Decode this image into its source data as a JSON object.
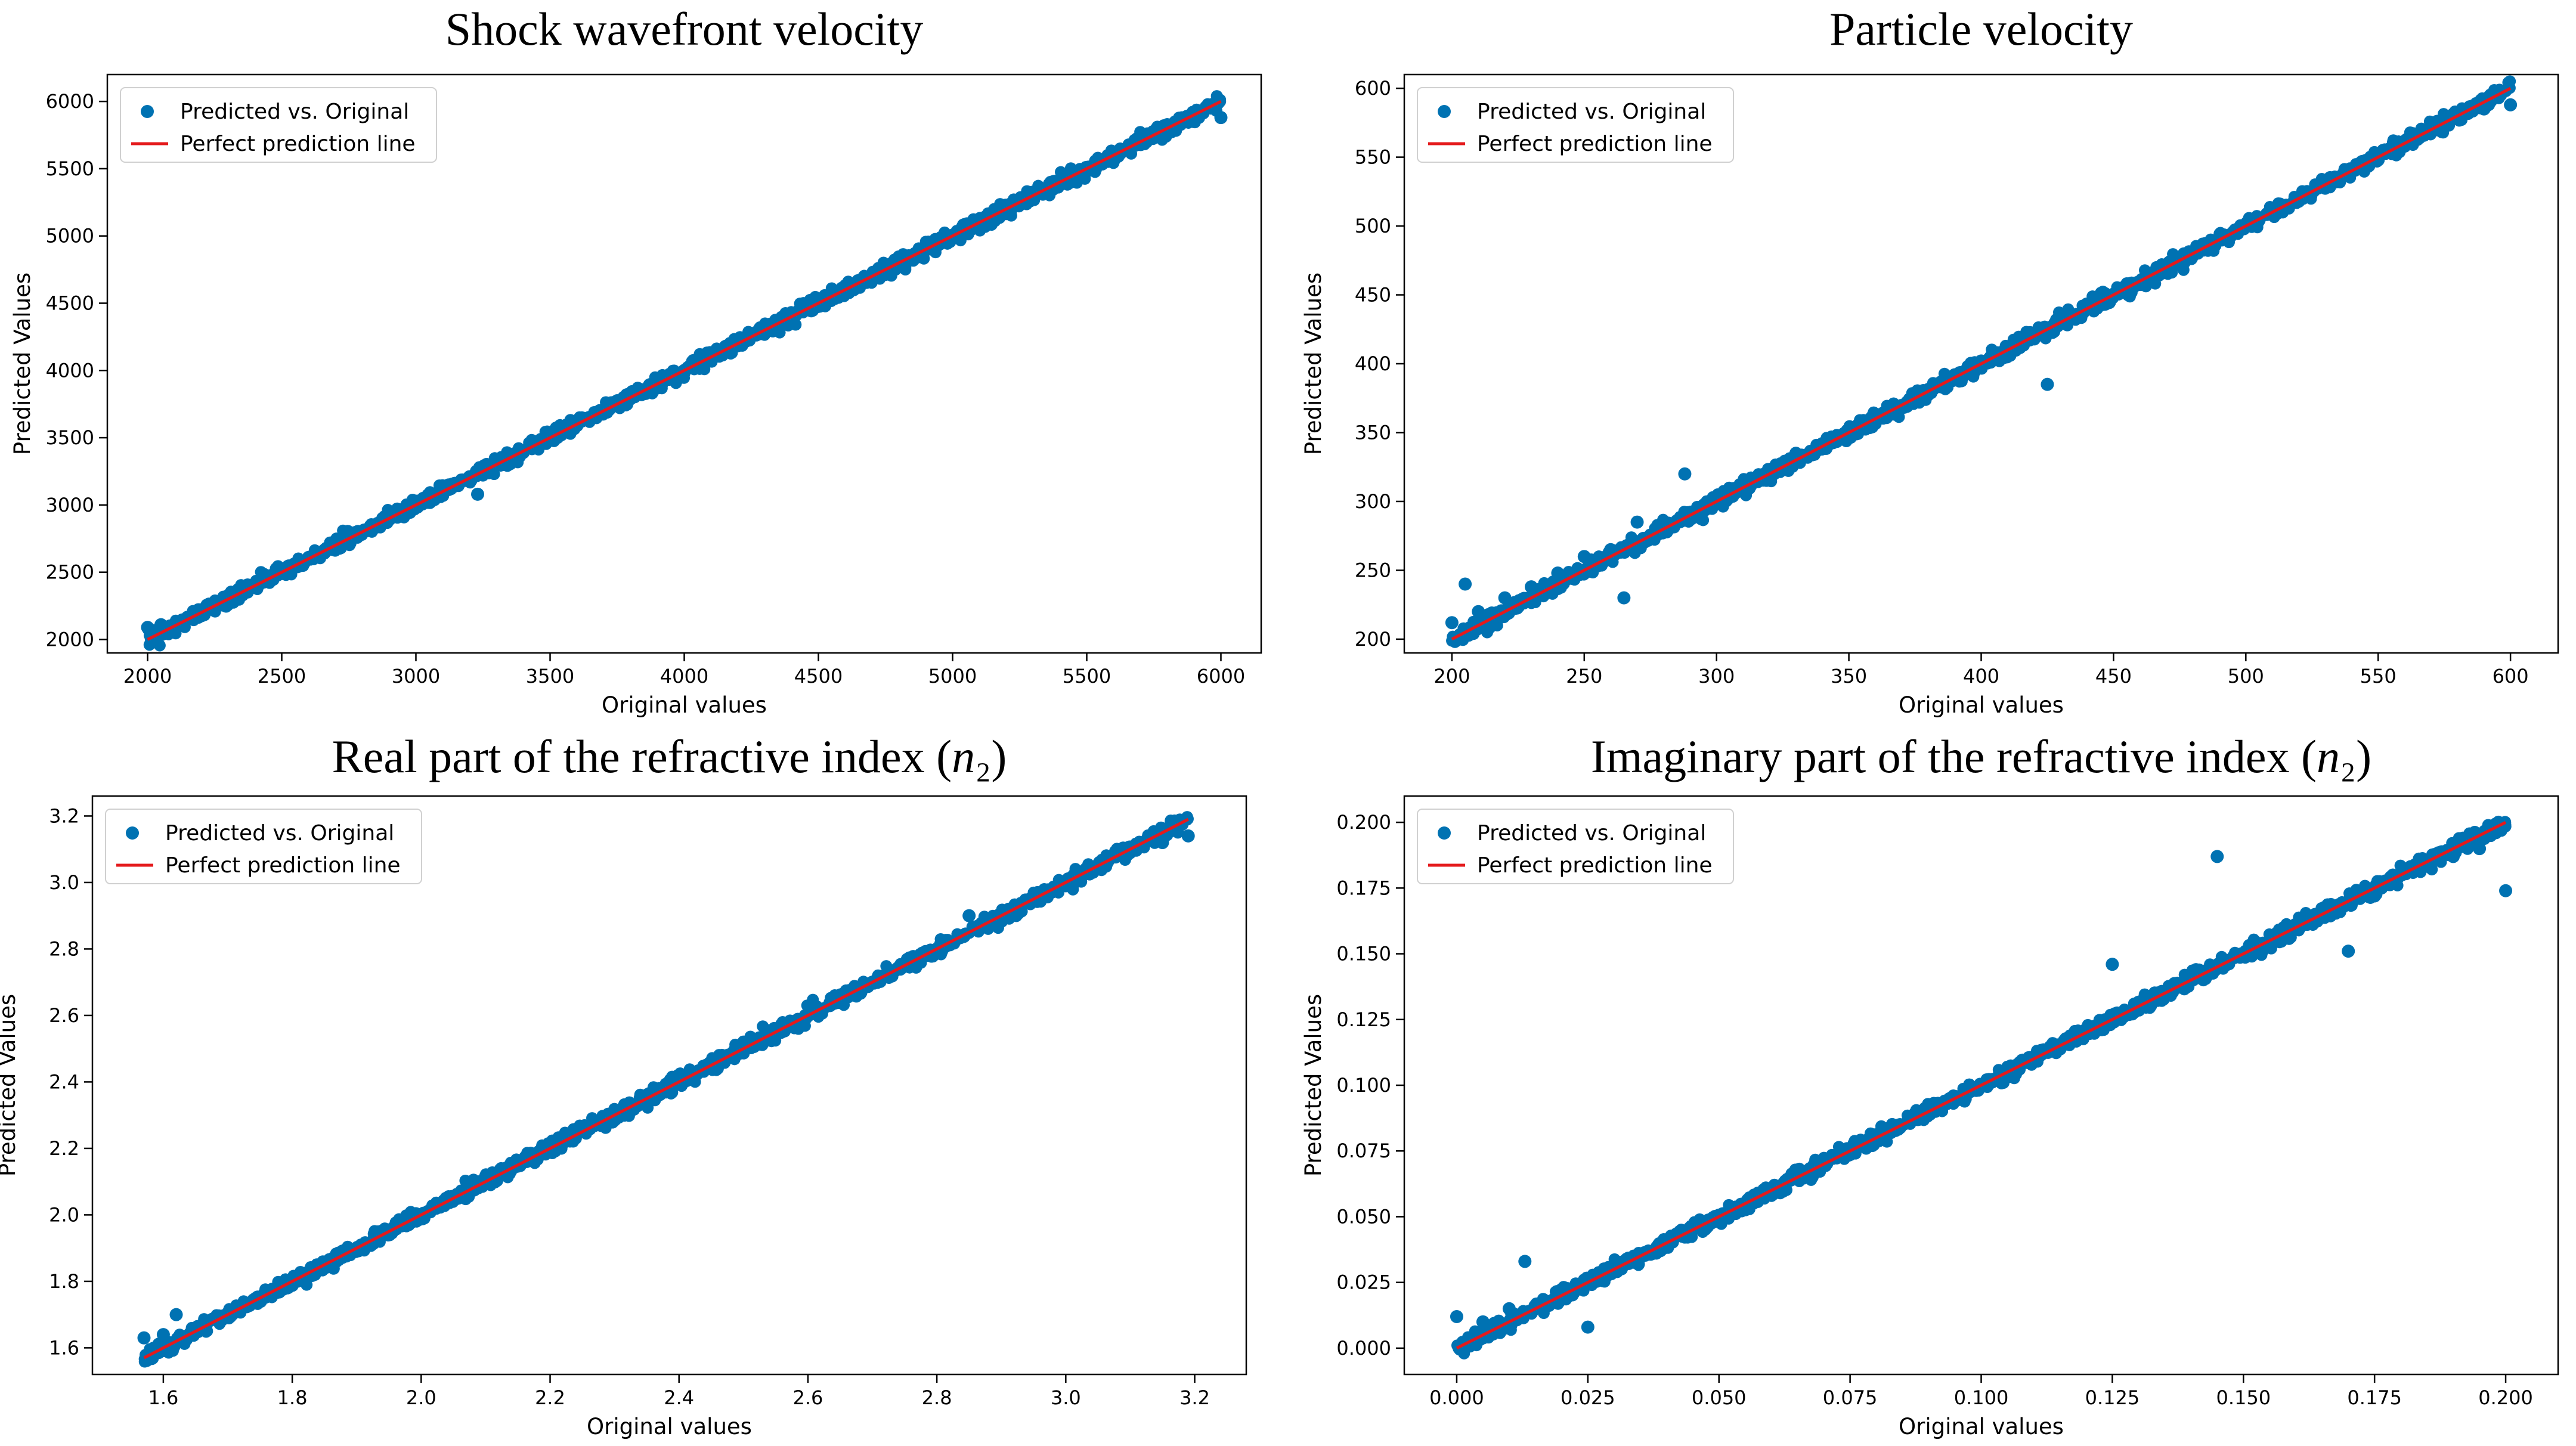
{
  "chart_data": [
    {
      "type": "scatter",
      "title": "Shock wavefront velocity",
      "xlabel": "Original values",
      "ylabel": "Predicted Values",
      "xlim": [
        1850,
        6150
      ],
      "ylim": [
        1900,
        6200
      ],
      "xticks": [
        2000,
        2500,
        3000,
        3500,
        4000,
        4500,
        5000,
        5500,
        6000
      ],
      "yticks": [
        2000,
        2500,
        3000,
        3500,
        4000,
        4500,
        5000,
        5500,
        6000
      ],
      "xtick_labels": [
        "2000",
        "2500",
        "3000",
        "3500",
        "4000",
        "4500",
        "5000",
        "5500",
        "6000"
      ],
      "ytick_labels": [
        "2000",
        "2500",
        "3000",
        "3500",
        "4000",
        "4500",
        "5000",
        "5500",
        "6000"
      ],
      "legend": {
        "placement": "upper-left",
        "entries": [
          "Predicted vs. Original",
          "Perfect prediction line"
        ]
      },
      "series": [
        {
          "name": "Predicted vs. Original",
          "kind": "scatter",
          "color": "#0072b2",
          "x": [
            2000,
            2050,
            2100,
            2200,
            2300,
            2400,
            2500,
            2600,
            2700,
            2800,
            2900,
            3000,
            3100,
            3200,
            3230,
            3300,
            3400,
            3500,
            3600,
            3700,
            3800,
            3900,
            4000,
            4100,
            4200,
            4300,
            4400,
            4500,
            4600,
            4700,
            4800,
            4900,
            5000,
            5100,
            5200,
            5300,
            5400,
            5500,
            5600,
            5700,
            5800,
            5900,
            6000
          ],
          "y": [
            2090,
            2110,
            2100,
            2180,
            2290,
            2410,
            2490,
            2610,
            2690,
            2790,
            2910,
            3000,
            3090,
            3210,
            3080,
            3310,
            3390,
            3510,
            3590,
            3710,
            3790,
            3910,
            4000,
            4110,
            4190,
            4300,
            4400,
            4490,
            4610,
            4690,
            4800,
            4900,
            4990,
            5100,
            5190,
            5300,
            5380,
            5490,
            5590,
            5680,
            5770,
            5850,
            5880
          ]
        },
        {
          "name": "Perfect prediction line",
          "kind": "line",
          "color": "#e41a1c",
          "x": [
            2000,
            6000
          ],
          "y": [
            2000,
            6000
          ]
        }
      ]
    },
    {
      "type": "scatter",
      "title": "Particle velocity",
      "xlabel": "Original values",
      "ylabel": "Predicted Values",
      "xlim": [
        182,
        618
      ],
      "ylim": [
        190,
        610
      ],
      "xticks": [
        200,
        250,
        300,
        350,
        400,
        450,
        500,
        550,
        600
      ],
      "yticks": [
        200,
        250,
        300,
        350,
        400,
        450,
        500,
        550,
        600
      ],
      "xtick_labels": [
        "200",
        "250",
        "300",
        "350",
        "400",
        "450",
        "500",
        "550",
        "600"
      ],
      "ytick_labels": [
        "200",
        "250",
        "300",
        "350",
        "400",
        "450",
        "500",
        "550",
        "600"
      ],
      "legend": {
        "placement": "upper-left",
        "entries": [
          "Predicted vs. Original",
          "Perfect prediction line"
        ]
      },
      "series": [
        {
          "name": "Predicted vs. Original",
          "kind": "scatter",
          "color": "#0072b2",
          "x": [
            200,
            205,
            210,
            220,
            230,
            240,
            250,
            260,
            265,
            270,
            280,
            288,
            290,
            300,
            310,
            320,
            330,
            340,
            350,
            360,
            370,
            380,
            390,
            400,
            410,
            420,
            425,
            430,
            440,
            450,
            460,
            470,
            480,
            490,
            500,
            510,
            520,
            530,
            540,
            550,
            560,
            570,
            580,
            590,
            600
          ],
          "y": [
            212,
            240,
            220,
            230,
            238,
            248,
            260,
            265,
            230,
            285,
            280,
            320,
            290,
            300,
            312,
            320,
            335,
            342,
            352,
            360,
            368,
            380,
            392,
            402,
            410,
            418,
            385,
            432,
            440,
            450,
            458,
            470,
            480,
            490,
            500,
            510,
            518,
            530,
            540,
            548,
            558,
            570,
            580,
            585,
            588
          ]
        },
        {
          "name": "Perfect prediction line",
          "kind": "line",
          "color": "#e41a1c",
          "x": [
            200,
            600
          ],
          "y": [
            200,
            600
          ]
        }
      ]
    },
    {
      "type": "scatter",
      "title": "Real part of the refractive index (n₂)",
      "xlabel": "Original values",
      "ylabel": "Predicted Values",
      "xlim": [
        1.49,
        3.28
      ],
      "ylim": [
        1.52,
        3.26
      ],
      "xticks": [
        1.6,
        1.8,
        2.0,
        2.2,
        2.4,
        2.6,
        2.8,
        3.0,
        3.2
      ],
      "yticks": [
        1.6,
        1.8,
        2.0,
        2.2,
        2.4,
        2.6,
        2.8,
        3.0,
        3.2
      ],
      "xtick_labels": [
        "1.6",
        "1.8",
        "2.0",
        "2.2",
        "2.4",
        "2.6",
        "2.8",
        "3.0",
        "3.2"
      ],
      "ytick_labels": [
        "1.6",
        "1.8",
        "2.0",
        "2.2",
        "2.4",
        "2.6",
        "2.8",
        "3.0",
        "3.2"
      ],
      "legend": {
        "placement": "upper-left",
        "entries": [
          "Predicted vs. Original",
          "Perfect prediction line"
        ]
      },
      "series": [
        {
          "name": "Predicted vs. Original",
          "kind": "scatter",
          "color": "#0072b2",
          "x": [
            1.57,
            1.6,
            1.62,
            1.7,
            1.8,
            1.9,
            2.0,
            2.1,
            2.2,
            2.3,
            2.4,
            2.5,
            2.6,
            2.7,
            2.8,
            2.85,
            2.9,
            3.0,
            3.05,
            3.1,
            3.15,
            3.19
          ],
          "y": [
            1.63,
            1.64,
            1.7,
            1.7,
            1.8,
            1.9,
            2.0,
            2.1,
            2.2,
            2.3,
            2.4,
            2.5,
            2.6,
            2.7,
            2.8,
            2.9,
            2.89,
            2.99,
            3.04,
            3.1,
            3.12,
            3.14
          ]
        },
        {
          "name": "Perfect prediction line",
          "kind": "line",
          "color": "#e41a1c",
          "x": [
            1.57,
            3.19
          ],
          "y": [
            1.57,
            3.19
          ]
        }
      ]
    },
    {
      "type": "scatter",
      "title": "Imaginary part of the refractive index (n₂)",
      "xlabel": "Original values",
      "ylabel": "Predicted Values",
      "xlim": [
        -0.01,
        0.21
      ],
      "ylim": [
        -0.01,
        0.21
      ],
      "xticks": [
        0.0,
        0.025,
        0.05,
        0.075,
        0.1,
        0.125,
        0.15,
        0.175,
        0.2
      ],
      "yticks": [
        0.0,
        0.025,
        0.05,
        0.075,
        0.1,
        0.125,
        0.15,
        0.175,
        0.2
      ],
      "xtick_labels": [
        "0.000",
        "0.025",
        "0.050",
        "0.075",
        "0.100",
        "0.125",
        "0.150",
        "0.175",
        "0.200"
      ],
      "ytick_labels": [
        "0.000",
        "0.025",
        "0.050",
        "0.075",
        "0.100",
        "0.125",
        "0.150",
        "0.175",
        "0.200"
      ],
      "legend": {
        "placement": "upper-left",
        "entries": [
          "Predicted vs. Original",
          "Perfect prediction line"
        ]
      },
      "series": [
        {
          "name": "Predicted vs. Original",
          "kind": "scatter",
          "color": "#0072b2",
          "x": [
            0.0,
            0.005,
            0.01,
            0.013,
            0.02,
            0.025,
            0.03,
            0.04,
            0.05,
            0.06,
            0.07,
            0.08,
            0.09,
            0.1,
            0.11,
            0.12,
            0.125,
            0.13,
            0.14,
            0.145,
            0.15,
            0.16,
            0.17,
            0.175,
            0.18,
            0.19,
            0.195,
            0.2
          ],
          "y": [
            0.012,
            0.01,
            0.015,
            0.033,
            0.022,
            0.008,
            0.03,
            0.04,
            0.05,
            0.06,
            0.07,
            0.08,
            0.09,
            0.1,
            0.11,
            0.12,
            0.146,
            0.13,
            0.14,
            0.187,
            0.15,
            0.16,
            0.151,
            0.172,
            0.18,
            0.187,
            0.19,
            0.174
          ]
        },
        {
          "name": "Perfect prediction line",
          "kind": "line",
          "color": "#e41a1c",
          "x": [
            0.0,
            0.2
          ],
          "y": [
            0.0,
            0.2
          ]
        }
      ]
    }
  ]
}
